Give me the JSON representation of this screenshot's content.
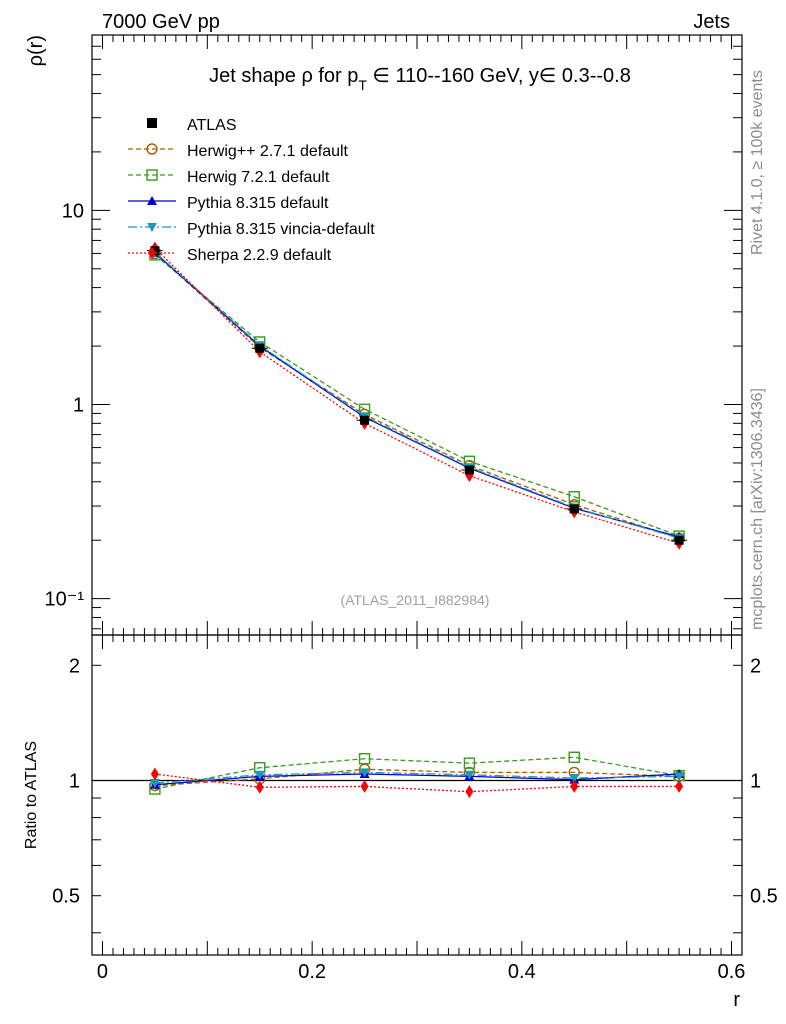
{
  "header": {
    "left": "7000 GeV pp",
    "right": "Jets"
  },
  "side_labels": {
    "rivet": "Rivet 4.1.0, ≥ 100k events",
    "mcplots": "mcplots.cern.ch [arXiv:1306.3436]"
  },
  "chart_data": {
    "type": "line",
    "title": "Jet shape ρ for p_T ∈ 110--160 GeV, y∈ 0.3--0.8",
    "title_parts": {
      "prefix": "Jet shape ρ for p",
      "subscript": "T",
      "suffix": " ∈ 110--160 GeV, y∈ 0.3--0.8"
    },
    "analysis_label": "(ATLAS_2011_I882984)",
    "ylabel": "ρ(r)",
    "ratio_ylabel": "Ratio to ATLAS",
    "xlabel": "r",
    "xlim": [
      -0.01,
      0.61
    ],
    "ylim": [
      0.065,
      80
    ],
    "yscale": "log",
    "ratio_ylim": [
      0.35,
      2.4
    ],
    "x_ticks": [
      "0",
      "0.2",
      "0.4",
      "0.6"
    ],
    "y_ticks": [
      "10⁻¹",
      "1",
      "10"
    ],
    "ratio_ticks": [
      "0.5",
      "1",
      "2"
    ],
    "x": [
      0.05,
      0.15,
      0.25,
      0.35,
      0.45,
      0.55
    ],
    "reference": {
      "name": "ATLAS",
      "color": "#000000",
      "values": [
        6.2,
        1.95,
        0.83,
        0.46,
        0.29,
        0.2
      ]
    },
    "series": [
      {
        "name": "Herwig++ 2.7.1 default",
        "color": "#b35a00",
        "marker": "circle-open",
        "dash": "5,3",
        "values": [
          6.0,
          1.97,
          0.89,
          0.485,
          0.305,
          0.205
        ]
      },
      {
        "name": "Herwig 7.2.1 default",
        "color": "#3a9a20",
        "marker": "square-open",
        "dash": "5,3",
        "values": [
          5.9,
          2.1,
          0.945,
          0.51,
          0.335,
          0.21
        ]
      },
      {
        "name": "Pythia 8.315 default",
        "color": "#0000cc",
        "marker": "triangle-up",
        "dash": "",
        "values": [
          6.05,
          2.0,
          0.86,
          0.47,
          0.292,
          0.208
        ]
      },
      {
        "name": "Pythia 8.315 vincia-default",
        "color": "#1a9ab8",
        "marker": "triangle-down",
        "dash": "9,3,2,3",
        "values": [
          6.1,
          2.02,
          0.87,
          0.475,
          0.295,
          0.205
        ]
      },
      {
        "name": "Sherpa 2.2.9 default",
        "color": "#ff0000",
        "marker": "diamond",
        "dash": "2,2",
        "values": [
          6.4,
          1.87,
          0.8,
          0.43,
          0.28,
          0.193
        ]
      }
    ],
    "ratio_series": [
      {
        "name": "Herwig++ 2.7.1 default",
        "values": [
          0.97,
          1.01,
          1.07,
          1.05,
          1.05,
          1.025
        ]
      },
      {
        "name": "Herwig 7.2.1 default",
        "values": [
          0.95,
          1.08,
          1.14,
          1.11,
          1.15,
          1.03
        ]
      },
      {
        "name": "Pythia 8.315 default",
        "values": [
          0.975,
          1.025,
          1.04,
          1.025,
          1.005,
          1.04
        ]
      },
      {
        "name": "Pythia 8.315 vincia-default",
        "values": [
          0.985,
          1.035,
          1.05,
          1.035,
          1.015,
          1.025
        ]
      },
      {
        "name": "Sherpa 2.2.9 default",
        "values": [
          1.04,
          0.96,
          0.965,
          0.935,
          0.965,
          0.965
        ]
      }
    ]
  }
}
